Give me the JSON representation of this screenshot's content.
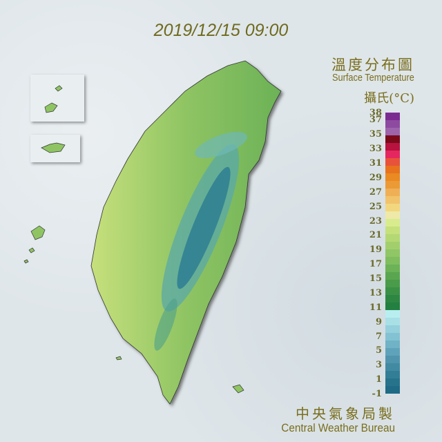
{
  "timestamp": "2019/12/15 09:00",
  "title_zh": "溫度分布圖",
  "title_en": "Surface Temperature",
  "unit": "攝氏(°C)",
  "footer_zh": "中央氣象局製",
  "footer_en": "Central Weather Bureau",
  "legend": {
    "labels": [
      "38",
      "37",
      "35",
      "33",
      "31",
      "29",
      "27",
      "25",
      "23",
      "21",
      "19",
      "17",
      "15",
      "13",
      "11",
      "9",
      "7",
      "5",
      "3",
      "1",
      "-1"
    ],
    "colors_top_to_bottom": [
      "#7b2c91",
      "#8e4aa0",
      "#9d64ac",
      "#7a0a1a",
      "#b8123e",
      "#e5275f",
      "#e8523a",
      "#e8721e",
      "#ea8a22",
      "#eb9a35",
      "#efb055",
      "#f1c36a",
      "#f2d77e",
      "#eee9a8",
      "#d8ec8e",
      "#c6e07c",
      "#b4d873",
      "#a2cf6c",
      "#90c665",
      "#7fbd5e",
      "#6cb257",
      "#5aa650",
      "#4a9b4a",
      "#3a9146",
      "#2d8742",
      "#238040",
      "#b8eef0",
      "#a8e0e6",
      "#95d0dc",
      "#83c2d2",
      "#70b2c6",
      "#5fa3ba",
      "#5095ad",
      "#418aa2",
      "#327e96",
      "#27738c",
      "#1f6a84"
    ],
    "range": [
      -1,
      38
    ]
  },
  "map": {
    "lowland_color": "#a3cf6c",
    "mountain_color": "#3a8aa0"
  }
}
